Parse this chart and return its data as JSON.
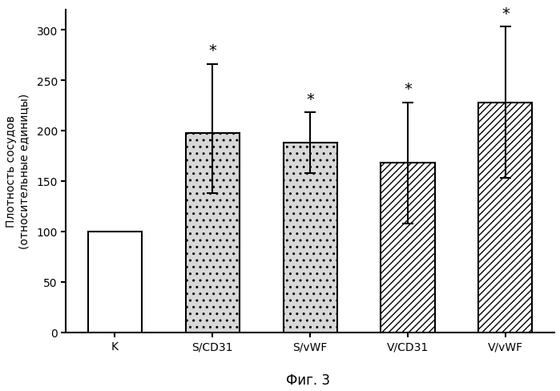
{
  "categories": [
    "K",
    "S/CD31",
    "S/vWF",
    "V/CD31",
    "V/vWF"
  ],
  "values": [
    100,
    198,
    188,
    168,
    228
  ],
  "errors_up": [
    0,
    68,
    30,
    60,
    75
  ],
  "errors_down": [
    0,
    60,
    30,
    60,
    75
  ],
  "hatches": [
    "",
    "..",
    "..",
    "////",
    "////"
  ],
  "bar_facecolors": [
    "#ffffff",
    "#d8d8d8",
    "#d8d8d8",
    "#ffffff",
    "#ffffff"
  ],
  "bar_edgecolor": "#000000",
  "significance": [
    false,
    true,
    true,
    true,
    true
  ],
  "ylabel_line1": "Плотность сосудов",
  "ylabel_line2": "(относительные единицы)",
  "xlabel_caption": "Фиг. 3",
  "ylim": [
    0,
    320
  ],
  "yticks": [
    0,
    50,
    100,
    150,
    200,
    250,
    300
  ],
  "bar_width": 0.55,
  "figsize": [
    6.99,
    4.89
  ],
  "dpi": 100,
  "background_color": "#ffffff",
  "asterisk_fontsize": 14,
  "axis_label_fontsize": 10,
  "tick_label_fontsize": 10,
  "caption_fontsize": 12,
  "bar_spacing": 1.0
}
